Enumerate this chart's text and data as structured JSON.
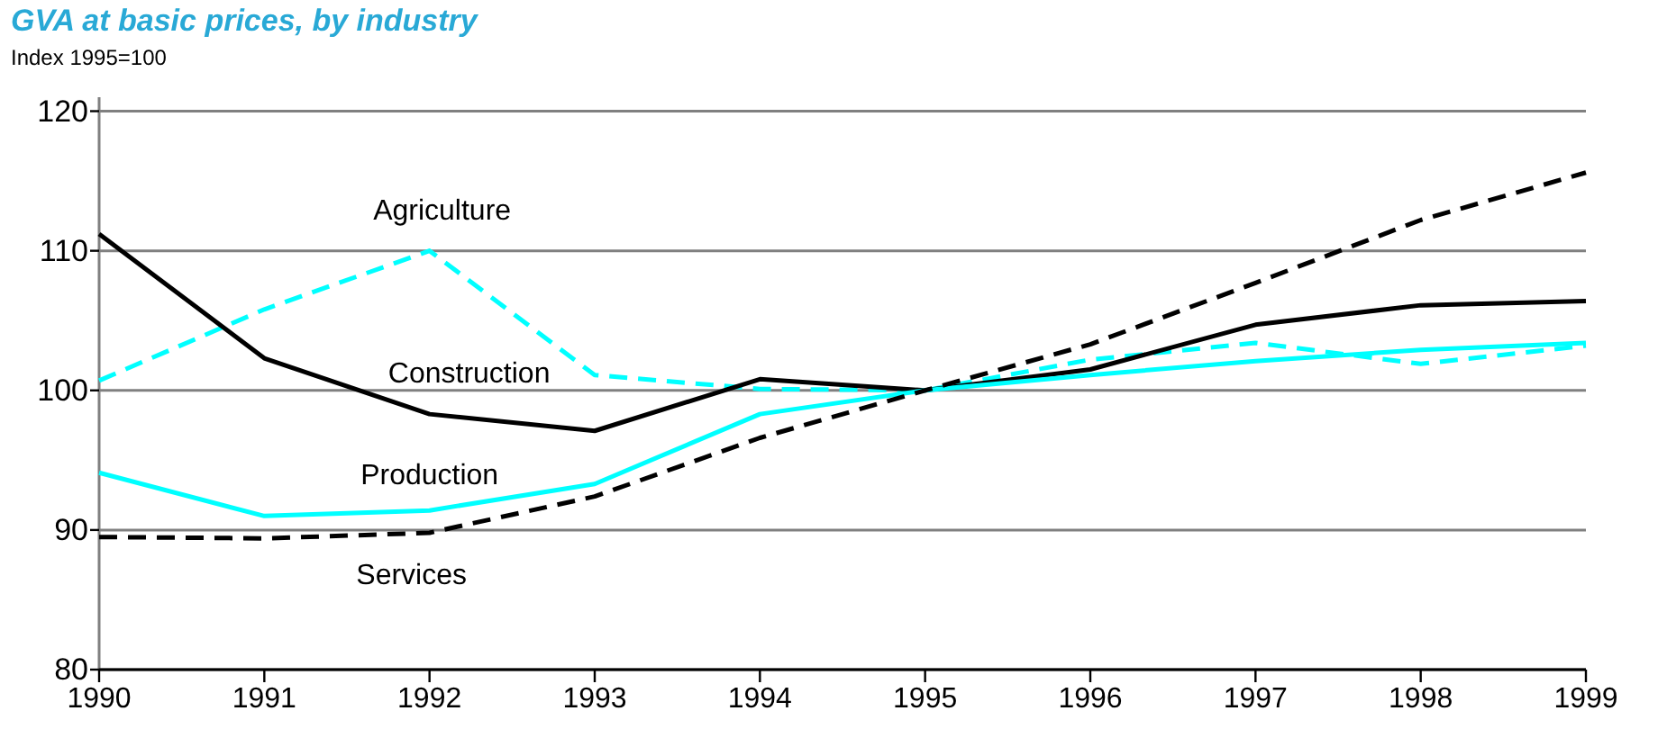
{
  "chart_data": {
    "type": "line",
    "title": "GVA at basic prices, by industry",
    "subtitle": "Index 1995=100",
    "x": [
      1990,
      1991,
      1992,
      1993,
      1994,
      1995,
      1996,
      1997,
      1998,
      1999
    ],
    "xlim": [
      1990,
      1999
    ],
    "xticks": [
      1990,
      1991,
      1992,
      1993,
      1994,
      1995,
      1996,
      1997,
      1998,
      1999
    ],
    "ylim": [
      80,
      121
    ],
    "yticks": [
      80,
      90,
      100,
      110,
      120
    ],
    "grid": "y",
    "legend": false,
    "series": [
      {
        "name": "Agriculture",
        "color": "#00ffff",
        "line_style": "dashed",
        "values": [
          100.7,
          105.8,
          110,
          101.1,
          100.1,
          100,
          102.2,
          103.4,
          101.9,
          103.2
        ]
      },
      {
        "name": "Construction",
        "color": "#000000",
        "line_style": "solid",
        "values": [
          111.2,
          102.3,
          98.3,
          97.1,
          100.8,
          100,
          101.5,
          104.7,
          106.1,
          106.4
        ]
      },
      {
        "name": "Production",
        "color": "#00ffff",
        "line_style": "solid",
        "values": [
          94.1,
          91.0,
          91.4,
          93.3,
          98.3,
          100,
          101.1,
          102.1,
          102.9,
          103.4
        ]
      },
      {
        "name": "Services",
        "color": "#000000",
        "line_style": "dashed",
        "values": [
          89.5,
          89.4,
          89.8,
          92.4,
          96.6,
          100,
          103.3,
          107.7,
          112.2,
          115.6
        ]
      }
    ]
  }
}
